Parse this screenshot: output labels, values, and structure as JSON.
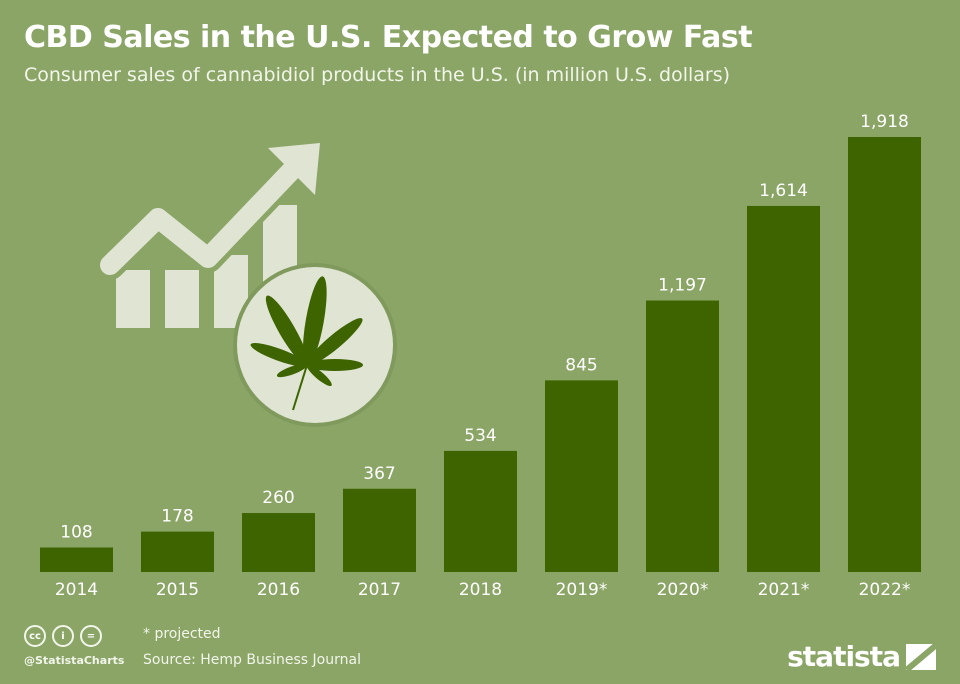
{
  "chart_data": {
    "type": "bar",
    "title": "CBD Sales in the U.S. Expected to Grow Fast",
    "subtitle": "Consumer sales of cannabidiol products in the U.S. (in million U.S. dollars)",
    "categories": [
      "2014",
      "2015",
      "2016",
      "2017",
      "2018",
      "2019*",
      "2020*",
      "2021*",
      "2022*"
    ],
    "values": [
      108,
      178,
      260,
      367,
      534,
      845,
      1197,
      1614,
      1918
    ],
    "value_labels": [
      "108",
      "178",
      "260",
      "367",
      "534",
      "845",
      "1,197",
      "1,614",
      "1,918"
    ],
    "xlabel": "",
    "ylabel": "",
    "ylim": [
      0,
      1918
    ],
    "grid": false,
    "colors": {
      "background": "#8ba567",
      "bar": "#3e6400",
      "text": "#ffffff"
    }
  },
  "footer": {
    "note": "* projected",
    "source": "Source: Hemp Business Journal",
    "handle": "@StatistaCharts",
    "brand": "statista",
    "license_icons": [
      "cc-icon",
      "attribution-icon",
      "no-derivatives-icon"
    ]
  },
  "illustration": {
    "icons": [
      "trend-chart-icon",
      "cannabis-leaf-icon"
    ]
  }
}
